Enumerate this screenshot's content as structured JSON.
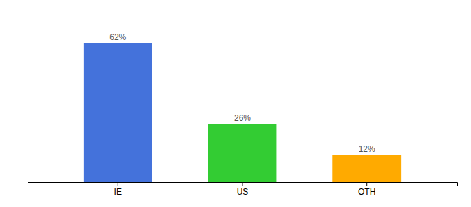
{
  "chart_data": {
    "type": "bar",
    "categories": [
      "IE",
      "US",
      "OTH"
    ],
    "values": [
      62,
      26,
      12
    ],
    "value_labels": [
      "62%",
      "26%",
      "12%"
    ],
    "colors": [
      "#4472db",
      "#33cc33",
      "#ffaa00"
    ],
    "ylim": [
      0,
      72
    ],
    "data_labels": true,
    "tick_labels": "x"
  }
}
